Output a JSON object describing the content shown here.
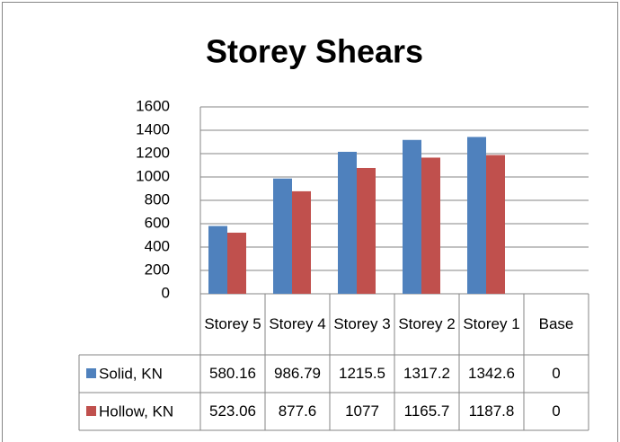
{
  "chart_data": {
    "type": "bar",
    "title": "Storey Shears",
    "categories": [
      "Storey 5",
      "Storey 4",
      "Storey 3",
      "Storey 2",
      "Storey 1",
      "Base"
    ],
    "series": [
      {
        "name": "Solid, KN",
        "color": "#4f81bd",
        "values": [
          580.16,
          986.79,
          1215.5,
          1317.2,
          1342.6,
          0
        ]
      },
      {
        "name": "Hollow, KN",
        "color": "#c0504d",
        "values": [
          523.06,
          877.6,
          1077,
          1165.7,
          1187.8,
          0
        ]
      }
    ],
    "ylim": [
      0,
      1600
    ],
    "yticks": [
      0,
      200,
      400,
      600,
      800,
      1000,
      1200,
      1400,
      1600
    ],
    "grid": true
  }
}
